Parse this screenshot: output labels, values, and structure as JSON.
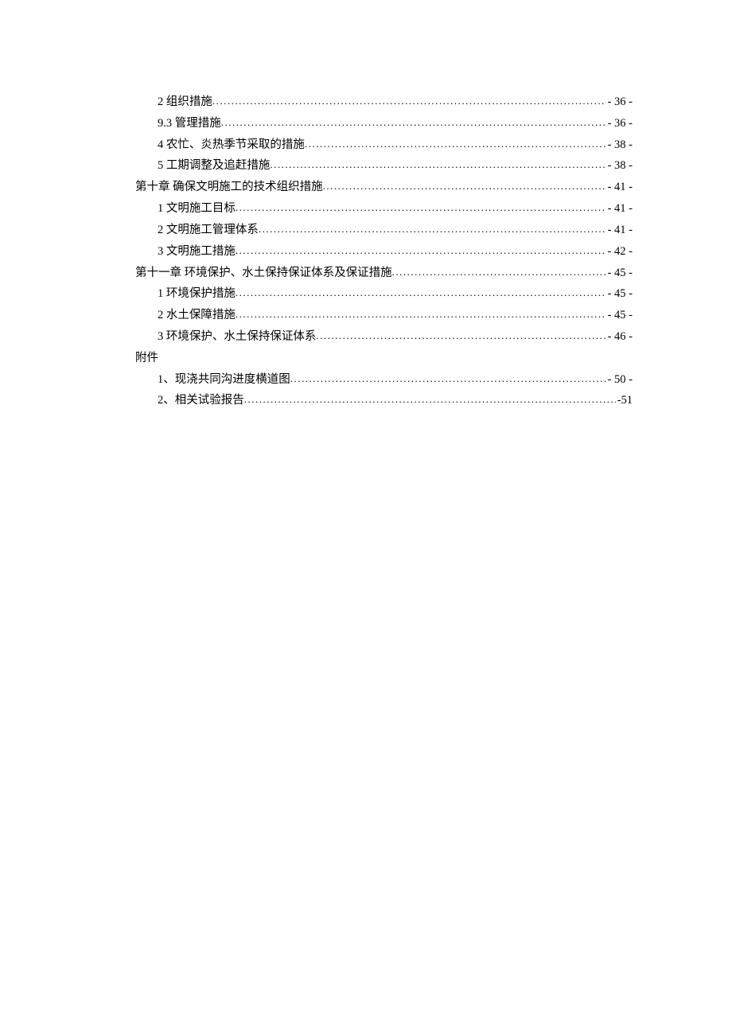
{
  "toc": {
    "font_family": "SimSun",
    "font_size_pt": 11,
    "text_color": "#000000",
    "background_color": "#ffffff",
    "leader_char": ".",
    "entries": [
      {
        "indent": 1,
        "label": "2 组织措施",
        "page": "- 36 -",
        "dots": true
      },
      {
        "indent": 1,
        "label": "9.3 管理措施",
        "page": "- 36 -",
        "dots": true
      },
      {
        "indent": 1,
        "label": "4 农忙、炎热季节采取的措施",
        "page": "- 38 -",
        "dots": true
      },
      {
        "indent": 1,
        "label": "5 工期调整及追赶措施",
        "page": "- 38 -",
        "dots": true
      },
      {
        "indent": 0,
        "label": "第十章  确保文明施工的技术组织措施",
        "page": "- 41 -",
        "dots": true
      },
      {
        "indent": 1,
        "label": "1 文明施工目标",
        "page": "- 41 -",
        "dots": true
      },
      {
        "indent": 1,
        "label": "2 文明施工管理体系",
        "page": "- 41 -",
        "dots": true
      },
      {
        "indent": 1,
        "label": "3 文明施工措施",
        "page": "- 42 -",
        "dots": true
      },
      {
        "indent": 0,
        "label": "第十一章  环境保护、水土保持保证体系及保证措施",
        "page": "- 45 -",
        "dots": true
      },
      {
        "indent": 1,
        "label": "1 环境保护措施",
        "page": "- 45 -",
        "dots": true
      },
      {
        "indent": 1,
        "label": "2 水土保障措施",
        "page": "- 45 -",
        "dots": true
      },
      {
        "indent": 1,
        "label": "3 环境保护、水土保持保证体系",
        "page": "- 46 -",
        "dots": true
      },
      {
        "indent": 0,
        "label": "附件",
        "page": "",
        "dots": false
      },
      {
        "indent": 1,
        "label": "1、现浇共同沟进度横道图",
        "page": "- 50 -",
        "dots": true
      },
      {
        "indent": 1,
        "label": "2、相关试验报告",
        "page": "-51",
        "dots": true
      }
    ]
  }
}
